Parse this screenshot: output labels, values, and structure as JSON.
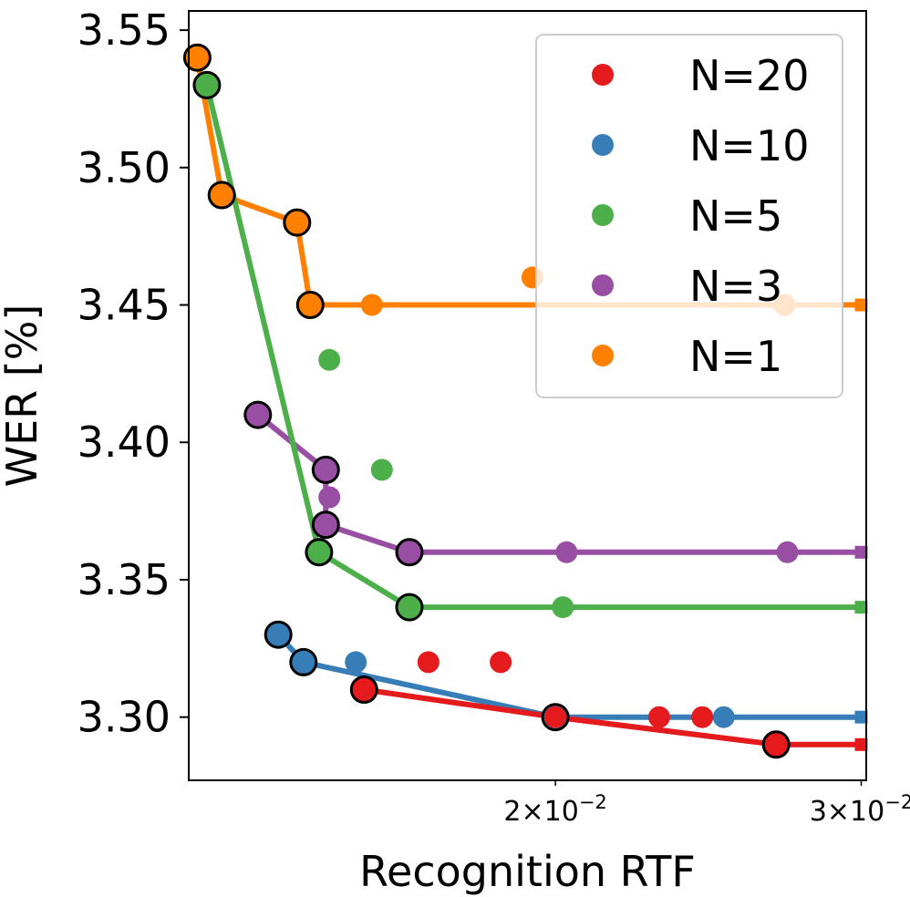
{
  "chart_data": {
    "type": "scatter",
    "title": "",
    "xlabel": "Recognition RTF",
    "ylabel": "WER [%]",
    "xscale": "log",
    "xlim": [
      0.0123,
      0.0302
    ],
    "ylim": [
      3.277,
      3.557
    ],
    "x_tick_labels": [
      {
        "value": 0.02,
        "mantissa": "2",
        "base": "10",
        "exp": "−2"
      },
      {
        "value": 0.03,
        "mantissa": "3",
        "base": "10",
        "exp": "−2"
      }
    ],
    "y_ticks": [
      3.3,
      3.35,
      3.4,
      3.45,
      3.5,
      3.55
    ],
    "y_tick_labels": [
      "3.30",
      "3.35",
      "3.40",
      "3.45",
      "3.50",
      "3.55"
    ],
    "legend_position": "upper-right",
    "series": [
      {
        "name": "N=20",
        "label": "N=20",
        "color": "#e41a1c",
        "points": [
          [
            0.01552,
            3.31
          ],
          [
            0.0169,
            3.32
          ],
          [
            0.0186,
            3.32
          ],
          [
            0.02,
            3.3
          ],
          [
            0.02295,
            3.3
          ],
          [
            0.0243,
            3.3
          ],
          [
            0.0268,
            3.29
          ]
        ],
        "pareto": [
          [
            0.01552,
            3.31
          ],
          [
            0.02,
            3.3
          ],
          [
            0.0268,
            3.29
          ],
          [
            0.03,
            3.29
          ]
        ],
        "pareto_outlined": [
          [
            0.01552,
            3.31
          ],
          [
            0.0268,
            3.29
          ]
        ]
      },
      {
        "name": "N=10",
        "label": "N=10",
        "color": "#377eb8",
        "points": [
          [
            0.01385,
            3.33
          ],
          [
            0.01432,
            3.32
          ],
          [
            0.01535,
            3.32
          ],
          [
            0.02,
            3.3
          ],
          [
            0.025,
            3.3
          ]
        ],
        "pareto": [
          [
            0.01385,
            3.33
          ],
          [
            0.01432,
            3.32
          ],
          [
            0.02,
            3.3
          ],
          [
            0.03,
            3.3
          ]
        ],
        "pareto_outlined": [
          [
            0.01385,
            3.33
          ],
          [
            0.01432,
            3.32
          ],
          [
            0.02,
            3.3
          ]
        ]
      },
      {
        "name": "N=5",
        "label": "N=5",
        "color": "#4daf4a",
        "points": [
          [
            0.0126,
            3.53
          ],
          [
            0.01462,
            3.36
          ],
          [
            0.01482,
            3.43
          ],
          [
            0.01589,
            3.39
          ],
          [
            0.01648,
            3.34
          ],
          [
            0.0202,
            3.34
          ]
        ],
        "pareto": [
          [
            0.0126,
            3.53
          ],
          [
            0.01462,
            3.36
          ],
          [
            0.01648,
            3.34
          ],
          [
            0.03,
            3.34
          ]
        ],
        "pareto_outlined": [
          [
            0.0126,
            3.53
          ],
          [
            0.01462,
            3.36
          ],
          [
            0.01648,
            3.34
          ]
        ]
      },
      {
        "name": "N=3",
        "label": "N=3",
        "color": "#984ea3",
        "points": [
          [
            0.01348,
            3.41
          ],
          [
            0.01475,
            3.39
          ],
          [
            0.01482,
            3.38
          ],
          [
            0.01475,
            3.37
          ],
          [
            0.01648,
            3.36
          ],
          [
            0.0203,
            3.36
          ],
          [
            0.0272,
            3.36
          ]
        ],
        "pareto": [
          [
            0.01348,
            3.41
          ],
          [
            0.01475,
            3.39
          ],
          [
            0.01475,
            3.37
          ],
          [
            0.01648,
            3.36
          ],
          [
            0.03,
            3.36
          ]
        ],
        "pareto_outlined": [
          [
            0.01348,
            3.41
          ],
          [
            0.01475,
            3.39
          ],
          [
            0.01475,
            3.37
          ],
          [
            0.01648,
            3.36
          ]
        ]
      },
      {
        "name": "N=1",
        "label": "N=1",
        "color": "#ff7f00",
        "points": [
          [
            0.01244,
            3.54
          ],
          [
            0.01285,
            3.49
          ],
          [
            0.0142,
            3.48
          ],
          [
            0.01445,
            3.45
          ],
          [
            0.01568,
            3.45
          ],
          [
            0.0194,
            3.46
          ],
          [
            0.0271,
            3.45
          ]
        ],
        "pareto": [
          [
            0.01244,
            3.54
          ],
          [
            0.01285,
            3.49
          ],
          [
            0.0142,
            3.48
          ],
          [
            0.01445,
            3.45
          ],
          [
            0.03,
            3.45
          ]
        ],
        "pareto_outlined": [
          [
            0.01244,
            3.54
          ],
          [
            0.01285,
            3.49
          ],
          [
            0.0142,
            3.48
          ],
          [
            0.01445,
            3.45
          ]
        ]
      }
    ]
  }
}
